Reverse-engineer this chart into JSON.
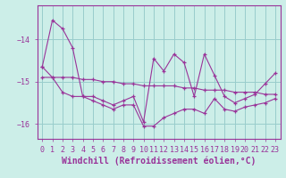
{
  "xlabel": "Windchill (Refroidissement éolien,°C)",
  "ylabel": "",
  "bg_color": "#cceee8",
  "line_color": "#993399",
  "grid_color": "#99cccc",
  "hours": [
    0,
    1,
    2,
    3,
    4,
    5,
    6,
    7,
    8,
    9,
    10,
    11,
    12,
    13,
    14,
    15,
    16,
    17,
    18,
    19,
    20,
    21,
    22,
    23
  ],
  "upper_data": [
    -14.65,
    -13.55,
    -13.75,
    -14.2,
    -15.35,
    -15.35,
    -15.45,
    -15.55,
    -15.45,
    -15.35,
    -15.95,
    -14.45,
    -14.75,
    -14.35,
    -14.55,
    -15.35,
    -14.35,
    -14.85,
    -15.35,
    -15.5,
    -15.4,
    -15.3,
    -15.05,
    -14.8
  ],
  "mid_data": [
    -14.9,
    -14.9,
    -14.9,
    -14.9,
    -14.95,
    -14.95,
    -15.0,
    -15.0,
    -15.05,
    -15.05,
    -15.1,
    -15.1,
    -15.1,
    -15.1,
    -15.15,
    -15.15,
    -15.2,
    -15.2,
    -15.2,
    -15.25,
    -15.25,
    -15.25,
    -15.3,
    -15.3
  ],
  "lower_data": [
    -14.65,
    -14.9,
    -15.25,
    -15.35,
    -15.35,
    -15.45,
    -15.55,
    -15.65,
    -15.55,
    -15.55,
    -16.05,
    -16.05,
    -15.85,
    -15.75,
    -15.65,
    -15.65,
    -15.75,
    -15.4,
    -15.65,
    -15.7,
    -15.6,
    -15.55,
    -15.5,
    -15.4
  ],
  "ylim": [
    -16.35,
    -13.2
  ],
  "yticks": [
    -16,
    -15,
    -14
  ],
  "xlim": [
    -0.5,
    23.5
  ],
  "label_fontsize": 7,
  "tick_fontsize": 6
}
